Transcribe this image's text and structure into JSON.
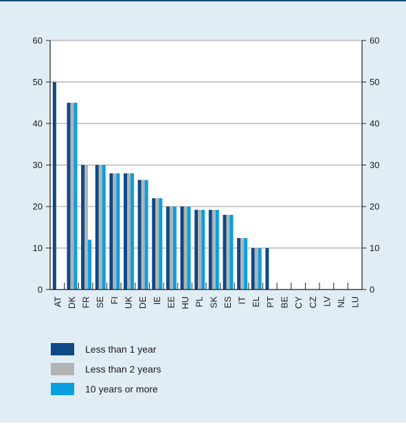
{
  "colors": {
    "background": "#e1edf5",
    "top_border": "#0d4a78",
    "series": [
      "#0d4a85",
      "#b1b3b5",
      "#0a9fe0"
    ]
  },
  "chart_data": {
    "type": "bar",
    "title": "",
    "xlabel": "",
    "ylabel": "",
    "ylim": [
      0,
      60
    ],
    "yticks": [
      0,
      10,
      20,
      30,
      40,
      50,
      60
    ],
    "grid": true,
    "legend_position": "bottom",
    "categories": [
      "AT",
      "DK",
      "FR",
      "SE",
      "FI",
      "UK",
      "DE",
      "IE",
      "EE",
      "HU",
      "PL",
      "SK",
      "ES",
      "IT",
      "EL",
      "PT",
      "BE",
      "CY",
      "CZ",
      "LV",
      "NL",
      "LU"
    ],
    "series": [
      {
        "name": "Less than 1 year",
        "color": "#0d4a85",
        "values": [
          50,
          45,
          30,
          30,
          28,
          28,
          26.4,
          22,
          20,
          20,
          19.2,
          19.2,
          18,
          12.4,
          10,
          10,
          0,
          0,
          0,
          0,
          0,
          0
        ]
      },
      {
        "name": "Less than 2 years",
        "color": "#b1b3b5",
        "values": [
          0,
          45,
          30,
          30,
          28,
          28,
          26.4,
          22,
          20,
          20,
          19.2,
          19.2,
          18,
          12.4,
          10,
          0,
          0,
          0,
          0,
          0,
          0,
          0
        ]
      },
      {
        "name": "10 years or more",
        "color": "#0a9fe0",
        "values": [
          0,
          45,
          12,
          30,
          28,
          28,
          26.4,
          22,
          20,
          20,
          19.2,
          19.2,
          18,
          12.4,
          10,
          0,
          0,
          0,
          0,
          0,
          0,
          0
        ]
      }
    ]
  }
}
